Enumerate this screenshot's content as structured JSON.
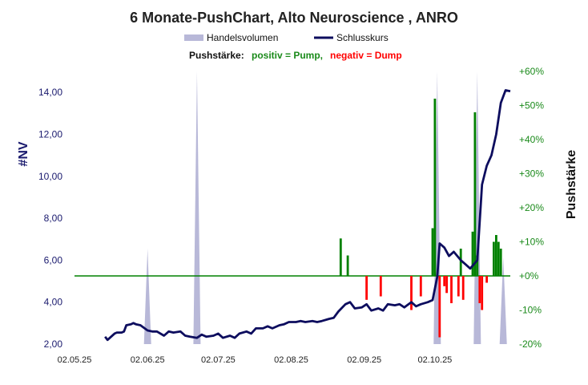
{
  "chart_data": {
    "type": "line",
    "title": "6 Monate-PushChart,  Alto Neuroscience , ANRO",
    "legend": {
      "volume_label": "Handelsvolumen",
      "close_label": "Schlusskurs",
      "push_prefix": "Pushstärke:",
      "push_positive": "positiv = Pump,",
      "push_negative": "negativ = Dump"
    },
    "ylabel": "#NV",
    "y2label": "Pushstärke",
    "ylim": [
      2.0,
      15.0
    ],
    "y2lim": [
      -20,
      60
    ],
    "y_ticks": [
      "2,00",
      "4,00",
      "6,00",
      "8,00",
      "10,00",
      "12,00",
      "14,00"
    ],
    "y2_ticks": [
      "-20%",
      "-10%",
      "+0%",
      "+10%",
      "+20%",
      "+30%",
      "+40%",
      "+50%",
      "+60%"
    ],
    "x_ticks": [
      "02.05.25",
      "02.06.25",
      "02.07.25",
      "02.08.25",
      "02.09.25",
      "02.10.25"
    ],
    "grid": false,
    "legend_position": "top",
    "colors": {
      "close": "#0d0d5e",
      "volume": "#b8b8d8",
      "pump": "#008000",
      "dump": "#ff0000",
      "zero_line": "#008000",
      "left_axis": "#1a1a6e",
      "right_axis": "#1a8a1a"
    },
    "close_series": {
      "name": "Schlusskurs",
      "points": [
        [
          "2025-05-15",
          2.35
        ],
        [
          "2025-05-16",
          2.2
        ],
        [
          "2025-05-19",
          2.5
        ],
        [
          "2025-05-20",
          2.55
        ],
        [
          "2025-05-22",
          2.55
        ],
        [
          "2025-05-23",
          2.6
        ],
        [
          "2025-05-24",
          2.9
        ],
        [
          "2025-05-26",
          2.95
        ],
        [
          "2025-05-27",
          3.0
        ],
        [
          "2025-05-28",
          2.95
        ],
        [
          "2025-05-30",
          2.9
        ],
        [
          "2025-06-02",
          2.65
        ],
        [
          "2025-06-04",
          2.6
        ],
        [
          "2025-06-06",
          2.6
        ],
        [
          "2025-06-09",
          2.4
        ],
        [
          "2025-06-11",
          2.6
        ],
        [
          "2025-06-13",
          2.55
        ],
        [
          "2025-06-16",
          2.6
        ],
        [
          "2025-06-18",
          2.4
        ],
        [
          "2025-06-20",
          2.35
        ],
        [
          "2025-06-23",
          2.3
        ],
        [
          "2025-06-25",
          2.45
        ],
        [
          "2025-06-27",
          2.35
        ],
        [
          "2025-06-30",
          2.4
        ],
        [
          "2025-07-02",
          2.5
        ],
        [
          "2025-07-04",
          2.3
        ],
        [
          "2025-07-07",
          2.4
        ],
        [
          "2025-07-09",
          2.3
        ],
        [
          "2025-07-11",
          2.5
        ],
        [
          "2025-07-14",
          2.6
        ],
        [
          "2025-07-16",
          2.5
        ],
        [
          "2025-07-18",
          2.75
        ],
        [
          "2025-07-21",
          2.75
        ],
        [
          "2025-07-23",
          2.85
        ],
        [
          "2025-07-25",
          2.75
        ],
        [
          "2025-07-28",
          2.9
        ],
        [
          "2025-07-30",
          2.95
        ],
        [
          "2025-08-01",
          3.05
        ],
        [
          "2025-08-04",
          3.05
        ],
        [
          "2025-08-06",
          3.1
        ],
        [
          "2025-08-08",
          3.05
        ],
        [
          "2025-08-11",
          3.1
        ],
        [
          "2025-08-13",
          3.05
        ],
        [
          "2025-08-15",
          3.1
        ],
        [
          "2025-08-18",
          3.2
        ],
        [
          "2025-08-20",
          3.25
        ],
        [
          "2025-08-22",
          3.55
        ],
        [
          "2025-08-25",
          3.9
        ],
        [
          "2025-08-27",
          4.0
        ],
        [
          "2025-08-29",
          3.7
        ],
        [
          "2025-09-01",
          3.75
        ],
        [
          "2025-09-03",
          3.9
        ],
        [
          "2025-09-05",
          3.6
        ],
        [
          "2025-09-08",
          3.7
        ],
        [
          "2025-09-10",
          3.6
        ],
        [
          "2025-09-12",
          3.9
        ],
        [
          "2025-09-15",
          3.85
        ],
        [
          "2025-09-17",
          3.9
        ],
        [
          "2025-09-19",
          3.75
        ],
        [
          "2025-09-22",
          4.0
        ],
        [
          "2025-09-24",
          3.8
        ],
        [
          "2025-09-26",
          3.9
        ],
        [
          "2025-09-29",
          4.0
        ],
        [
          "2025-10-01",
          4.1
        ],
        [
          "2025-10-03",
          5.2
        ],
        [
          "2025-10-04",
          6.8
        ],
        [
          "2025-10-06",
          6.6
        ],
        [
          "2025-10-08",
          6.2
        ],
        [
          "2025-10-10",
          6.4
        ],
        [
          "2025-10-13",
          6.0
        ],
        [
          "2025-10-15",
          5.8
        ],
        [
          "2025-10-17",
          5.6
        ],
        [
          "2025-10-20",
          6.0
        ],
        [
          "2025-10-22",
          9.6
        ],
        [
          "2025-10-24",
          10.5
        ],
        [
          "2025-10-26",
          11.0
        ],
        [
          "2025-10-28",
          12.0
        ],
        [
          "2025-10-30",
          13.5
        ],
        [
          "2025-11-01",
          14.1
        ],
        [
          "2025-11-03",
          14.05
        ]
      ]
    },
    "push_series": {
      "name": "Pushstärke",
      "bars": [
        [
          "2025-08-23",
          11
        ],
        [
          "2025-08-26",
          6
        ],
        [
          "2025-09-03",
          -7
        ],
        [
          "2025-09-09",
          -6
        ],
        [
          "2025-09-22",
          -10
        ],
        [
          "2025-09-26",
          -6
        ],
        [
          "2025-10-01",
          14
        ],
        [
          "2025-10-02",
          52
        ],
        [
          "2025-10-04",
          -18
        ],
        [
          "2025-10-06",
          -3
        ],
        [
          "2025-10-07",
          -5
        ],
        [
          "2025-10-09",
          -8
        ],
        [
          "2025-10-12",
          -6
        ],
        [
          "2025-10-13",
          8
        ],
        [
          "2025-10-14",
          -7
        ],
        [
          "2025-10-18",
          13
        ],
        [
          "2025-10-19",
          48
        ],
        [
          "2025-10-20",
          6
        ],
        [
          "2025-10-21",
          -8
        ],
        [
          "2025-10-22",
          -10
        ],
        [
          "2025-10-24",
          -2
        ],
        [
          "2025-10-27",
          10
        ],
        [
          "2025-10-28",
          12
        ],
        [
          "2025-10-29",
          10
        ],
        [
          "2025-10-30",
          8
        ]
      ]
    },
    "volume_series": {
      "name": "Handelsvolumen",
      "x_range": [
        "2025-05-15",
        "2025-11-03"
      ],
      "peaks": [
        [
          "2025-06-02",
          0.35
        ],
        [
          "2025-06-23",
          1.0
        ],
        [
          "2025-10-03",
          1.3
        ],
        [
          "2025-10-20",
          1.3
        ],
        [
          "2025-10-31",
          0.32
        ]
      ]
    }
  }
}
